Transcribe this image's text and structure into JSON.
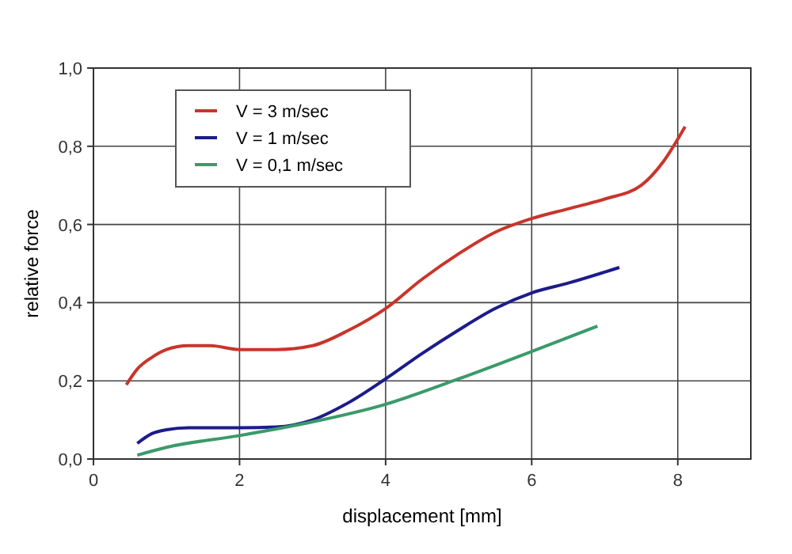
{
  "chart_data": {
    "type": "line",
    "xlabel": "displacement [mm]",
    "ylabel": "relative force",
    "xlim": [
      0,
      9
    ],
    "xticks": [
      0,
      2,
      4,
      6,
      8
    ],
    "ylim": [
      0,
      1
    ],
    "yticks": [
      {
        "value": 0,
        "label": "0,0"
      },
      {
        "value": 0.2,
        "label": "0,2"
      },
      {
        "value": 0.4,
        "label": "0,4"
      },
      {
        "value": 0.6,
        "label": "0,6"
      },
      {
        "value": 0.8,
        "label": "0,8"
      },
      {
        "value": 1,
        "label": "1,0"
      }
    ],
    "grid": true,
    "legend": "top left",
    "marker": "none",
    "line_style": "solid",
    "series": [
      {
        "name": "V = 3 m/sec",
        "color": "#c8352b",
        "x": [
          0.45,
          0.6,
          0.8,
          1.0,
          1.3,
          1.6,
          2.0,
          2.5,
          3.0,
          3.5,
          4.0,
          4.5,
          5.0,
          5.5,
          6.0,
          6.5,
          7.0,
          7.5,
          7.8,
          8.1
        ],
        "values": [
          0.19,
          0.23,
          0.26,
          0.28,
          0.29,
          0.29,
          0.28,
          0.28,
          0.29,
          0.33,
          0.385,
          0.46,
          0.525,
          0.58,
          0.615,
          0.64,
          0.665,
          0.7,
          0.76,
          0.85
        ]
      },
      {
        "name": "V = 1 m/sec",
        "color": "#1c1c8a",
        "x": [
          0.6,
          0.8,
          1.0,
          1.3,
          2.0,
          2.5,
          3.0,
          3.5,
          4.0,
          4.5,
          5.0,
          5.5,
          6.0,
          6.5,
          7.2
        ],
        "values": [
          0.04,
          0.065,
          0.075,
          0.08,
          0.08,
          0.082,
          0.1,
          0.145,
          0.205,
          0.27,
          0.33,
          0.385,
          0.425,
          0.45,
          0.49
        ]
      },
      {
        "name": "V = 0,1 m/sec",
        "color": "#3a9a6a",
        "x": [
          0.6,
          1.0,
          2.0,
          3.0,
          4.0,
          5.0,
          6.0,
          6.9
        ],
        "values": [
          0.01,
          0.03,
          0.06,
          0.095,
          0.14,
          0.205,
          0.275,
          0.34
        ]
      }
    ]
  }
}
